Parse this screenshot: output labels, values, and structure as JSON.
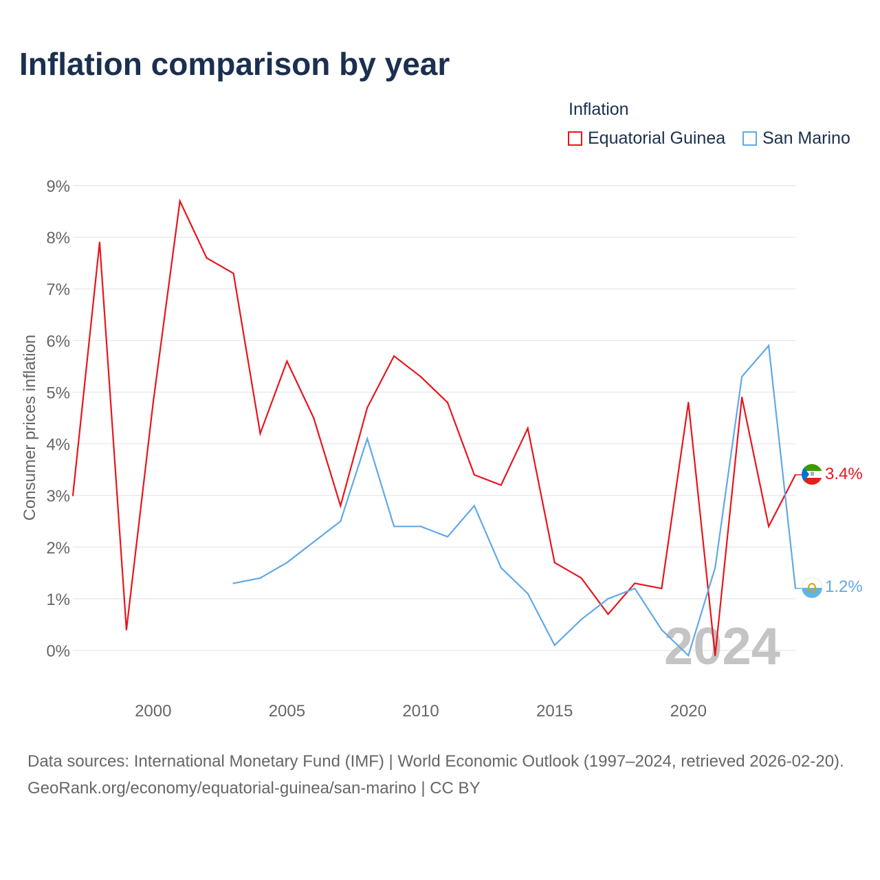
{
  "title": "Inflation comparison by year",
  "legend": {
    "title": "Inflation",
    "items": [
      {
        "label": "Equatorial Guinea",
        "color": "#e8141b"
      },
      {
        "label": "San Marino",
        "color": "#60a8e8"
      }
    ]
  },
  "chart_data": {
    "type": "line",
    "title": "Inflation comparison by year",
    "ylabel": "Consumer prices inflation",
    "xlabel": "",
    "x_range": [
      1997,
      2024
    ],
    "ylim": [
      0,
      9
    ],
    "yticks": [
      0,
      1,
      2,
      3,
      4,
      5,
      6,
      7,
      8,
      9
    ],
    "ytick_labels": [
      "0%",
      "1%",
      "2%",
      "3%",
      "4%",
      "5%",
      "6%",
      "7%",
      "8%",
      "9%"
    ],
    "xticks": [
      2000,
      2005,
      2010,
      2015,
      2020
    ],
    "xtick_labels": [
      "2000",
      "2005",
      "2010",
      "2015",
      "2020"
    ],
    "year_watermark": "2024",
    "series": [
      {
        "name": "Equatorial Guinea",
        "color": "#e8141b",
        "end_label": "3.4%",
        "flag": "equatorial-guinea",
        "x": [
          1997,
          1998,
          1999,
          2000,
          2001,
          2002,
          2003,
          2004,
          2005,
          2006,
          2007,
          2008,
          2009,
          2010,
          2011,
          2012,
          2013,
          2014,
          2015,
          2016,
          2017,
          2018,
          2019,
          2020,
          2021,
          2022,
          2023,
          2024
        ],
        "values": [
          3.0,
          7.9,
          0.4,
          4.8,
          8.7,
          7.6,
          7.3,
          4.2,
          5.6,
          4.5,
          2.8,
          4.7,
          5.7,
          5.3,
          4.8,
          3.4,
          3.2,
          4.3,
          1.7,
          1.4,
          0.7,
          1.3,
          1.2,
          4.8,
          -0.1,
          4.9,
          2.4,
          3.4
        ]
      },
      {
        "name": "San Marino",
        "color": "#60a8e8",
        "end_label": "1.2%",
        "flag": "san-marino",
        "x": [
          2003,
          2004,
          2005,
          2006,
          2007,
          2008,
          2009,
          2010,
          2011,
          2012,
          2013,
          2014,
          2015,
          2016,
          2017,
          2018,
          2019,
          2020,
          2021,
          2022,
          2023,
          2024
        ],
        "values": [
          1.3,
          1.4,
          1.7,
          2.1,
          2.5,
          4.1,
          2.4,
          2.4,
          2.2,
          2.8,
          1.6,
          1.1,
          0.1,
          0.6,
          1.0,
          1.2,
          0.4,
          -0.1,
          1.6,
          5.3,
          5.9,
          1.2
        ]
      }
    ]
  },
  "footer": {
    "sources": "Data sources: International Monetary Fund (IMF) | World Economic Outlook (1997–2024, retrieved 2026-02-20).",
    "credit": "GeoRank.org/economy/equatorial-guinea/san-marino | CC BY"
  }
}
